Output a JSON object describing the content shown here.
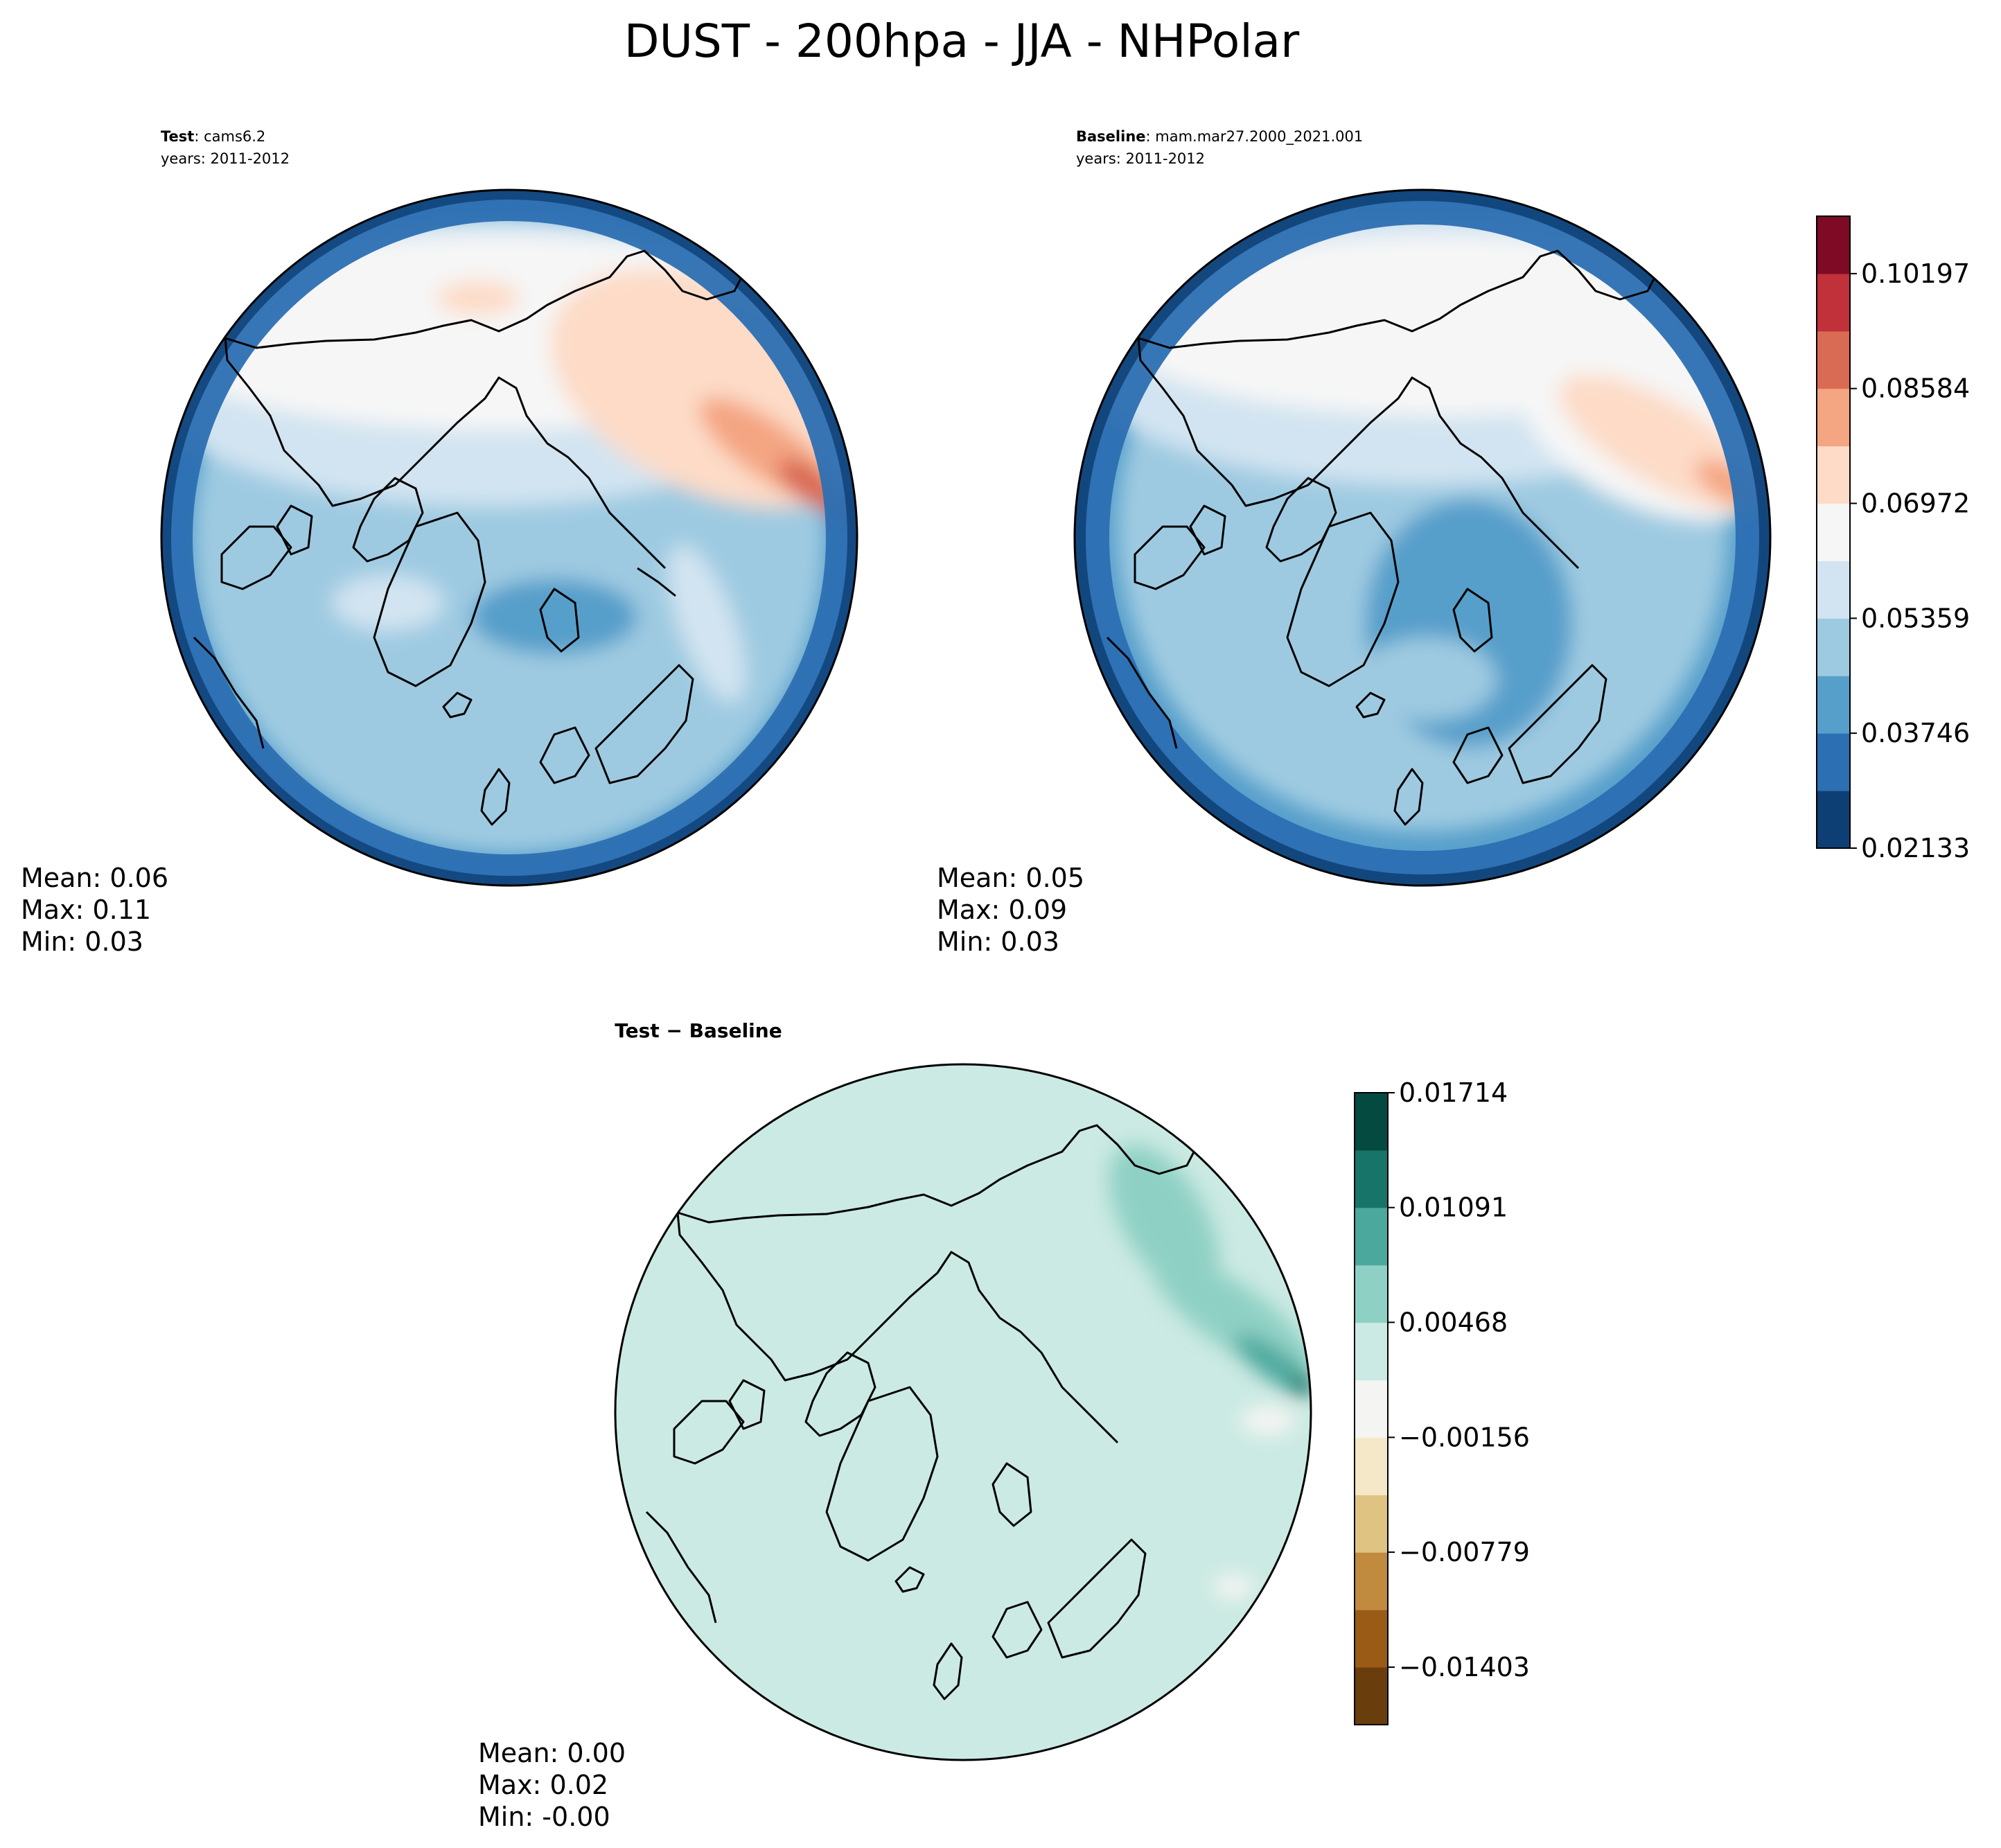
{
  "figure": {
    "title": "DUST - 200hpa - JJA - NHPolar"
  },
  "panels": {
    "test": {
      "label_bold": "Test",
      "label_rest": ": cams6.2",
      "years": "years: 2011-2012",
      "stats": {
        "mean": "Mean:  0.06",
        "max": "Max:  0.11",
        "min": "Min:  0.03"
      }
    },
    "baseline": {
      "label_bold": "Baseline",
      "label_rest": ": mam.mar27.2000_2021.001",
      "years": "years: 2011-2012",
      "stats": {
        "mean": "Mean:  0.05",
        "max": "Max:  0.09",
        "min": "Min:  0.03"
      }
    },
    "diff": {
      "label": "Test − Baseline",
      "stats": {
        "mean": "Mean:  0.00",
        "max": "Max:  0.02",
        "min": "Min: -0.00"
      }
    }
  },
  "colorbars": {
    "main": {
      "ticks": [
        "0.10197",
        "0.08584",
        "0.06972",
        "0.05359",
        "0.03746",
        "0.02133"
      ],
      "tick_values": [
        0.10197,
        0.08584,
        0.06972,
        0.05359,
        0.03746,
        0.02133
      ],
      "range": [
        0.02133,
        0.11003
      ],
      "colors": [
        "#0d3f74",
        "#2c6fb2",
        "#579fcb",
        "#9ecae1",
        "#d2e4f1",
        "#f6f6f6",
        "#fddbc7",
        "#f4a582",
        "#d96b55",
        "#c0313a",
        "#7e0a25"
      ]
    },
    "diff": {
      "ticks": [
        "0.01714",
        "0.01091",
        "0.00468",
        "−0.00156",
        "−0.00779",
        "−0.01403"
      ],
      "tick_values": [
        0.01714,
        0.01091,
        0.00468,
        -0.00156,
        -0.00779,
        -0.01403
      ],
      "range": [
        -0.01715,
        0.01714
      ],
      "colors": [
        "#6a3d0c",
        "#9a5b17",
        "#c08b3f",
        "#dfc383",
        "#f5e8c8",
        "#f4f4f2",
        "#cbeae3",
        "#8fd0c4",
        "#4ba89d",
        "#167468",
        "#044a40"
      ]
    }
  }
}
